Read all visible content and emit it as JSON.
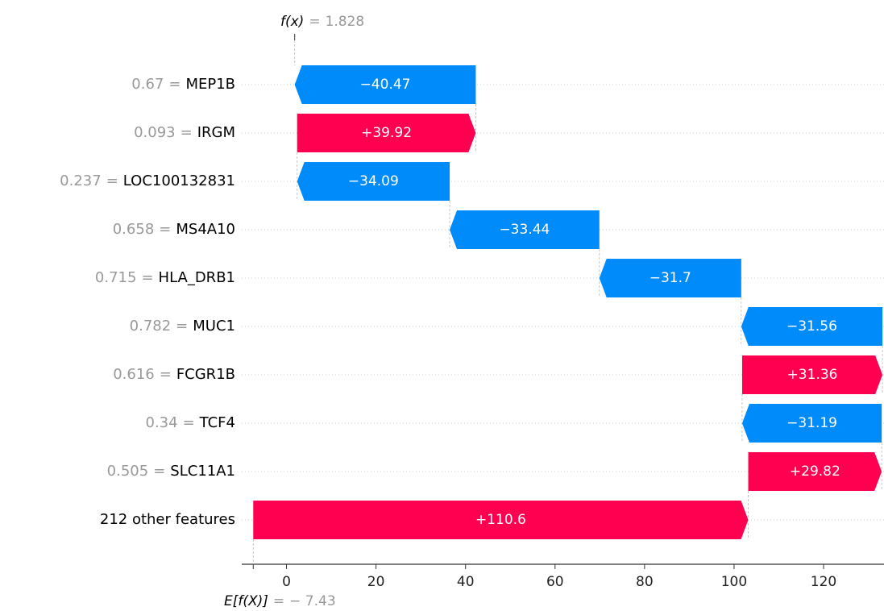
{
  "chart_data": {
    "type": "waterfall",
    "feature_values": [
      0.67,
      0.093,
      0.237,
      0.658,
      0.715,
      0.782,
      0.616,
      0.34,
      0.505,
      null
    ],
    "separator": "=",
    "categories": [
      "MEP1B",
      "IRGM",
      "LOC100132831",
      "MS4A10",
      "HLA_DRB1",
      "MUC1",
      "FCGR1B",
      "TCF4",
      "SLC11A1",
      "212 other features"
    ],
    "values": [
      -40.47,
      39.92,
      -34.09,
      -33.44,
      -31.7,
      -31.56,
      31.36,
      -31.19,
      29.82,
      110.6
    ],
    "value_labels": [
      "−40.47",
      "+39.92",
      "−34.09",
      "−33.44",
      "−31.7",
      "−31.56",
      "+31.36",
      "−31.19",
      "+29.82",
      "+110.6"
    ],
    "positive_color": "#ff0051",
    "negative_color": "#008bfb",
    "base_label": "E[f(X)]",
    "base_value": -7.43,
    "base_value_label": "− 7.43",
    "output_label": "f(x)",
    "output_value": 1.828,
    "xlim": [
      -10,
      133.5
    ],
    "xticks": [
      0,
      20,
      40,
      60,
      80,
      100,
      120
    ],
    "grid": true
  }
}
